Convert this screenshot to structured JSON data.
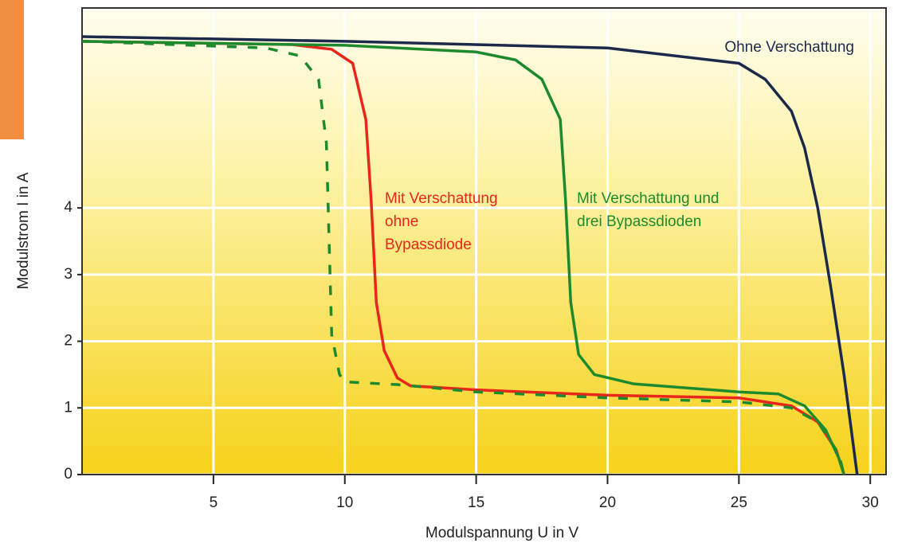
{
  "chart_data": {
    "type": "line",
    "xlabel": "Modulspannung U in V",
    "ylabel": "Modulstrom  I  in A",
    "xlim": [
      0,
      30.6
    ],
    "ylim": [
      0,
      7.0
    ],
    "xticks": [
      5,
      10,
      15,
      20,
      25,
      30
    ],
    "yticks": [
      0,
      1,
      2,
      3,
      4
    ],
    "grid": true,
    "series": [
      {
        "name": "Ohne Verschattung",
        "color": "#1b2a4a",
        "dash": false,
        "x": [
          0,
          10,
          20,
          25,
          26,
          27,
          27.5,
          28,
          28.5,
          29,
          29.5
        ],
        "values": [
          6.57,
          6.5,
          6.4,
          6.17,
          5.93,
          5.45,
          4.9,
          4.0,
          2.8,
          1.5,
          0
        ]
      },
      {
        "name": [
          "Mit Verschattung",
          "ohne",
          "Bypassdiode"
        ],
        "color": "#e8261c",
        "dash": false,
        "x": [
          0,
          8,
          9.5,
          10.3,
          10.8,
          11,
          11.2,
          11.5,
          12,
          12.5,
          15,
          20,
          25,
          27,
          28,
          28.7,
          29
        ],
        "values": [
          6.5,
          6.45,
          6.38,
          6.17,
          5.33,
          4.13,
          2.58,
          1.86,
          1.45,
          1.33,
          1.27,
          1.19,
          1.15,
          1.03,
          0.79,
          0.37,
          0
        ]
      },
      {
        "name": [
          "Mit Verschattung und",
          "drei Bypassdioden"
        ],
        "color": "#1e8a2e",
        "dash": false,
        "x": [
          0,
          10,
          15,
          16.5,
          17.5,
          18.2,
          18.4,
          18.6,
          18.9,
          19.5,
          21,
          25,
          26.5,
          27.5,
          28.3,
          28.8,
          29
        ],
        "values": [
          6.5,
          6.44,
          6.34,
          6.22,
          5.93,
          5.33,
          4.13,
          2.58,
          1.8,
          1.5,
          1.36,
          1.24,
          1.21,
          1.03,
          0.67,
          0.25,
          0
        ]
      },
      {
        "color": "#1e8a2e",
        "dash": true,
        "x": [
          0,
          7,
          8.3,
          9,
          9.3,
          9.4,
          9.5,
          9.8,
          10,
          12,
          15,
          20,
          25,
          27,
          28,
          28.8,
          29
        ],
        "values": [
          6.5,
          6.4,
          6.28,
          5.93,
          4.97,
          3.54,
          2.1,
          1.5,
          1.39,
          1.35,
          1.24,
          1.15,
          1.09,
          1.0,
          0.79,
          0.31,
          0
        ]
      }
    ]
  }
}
